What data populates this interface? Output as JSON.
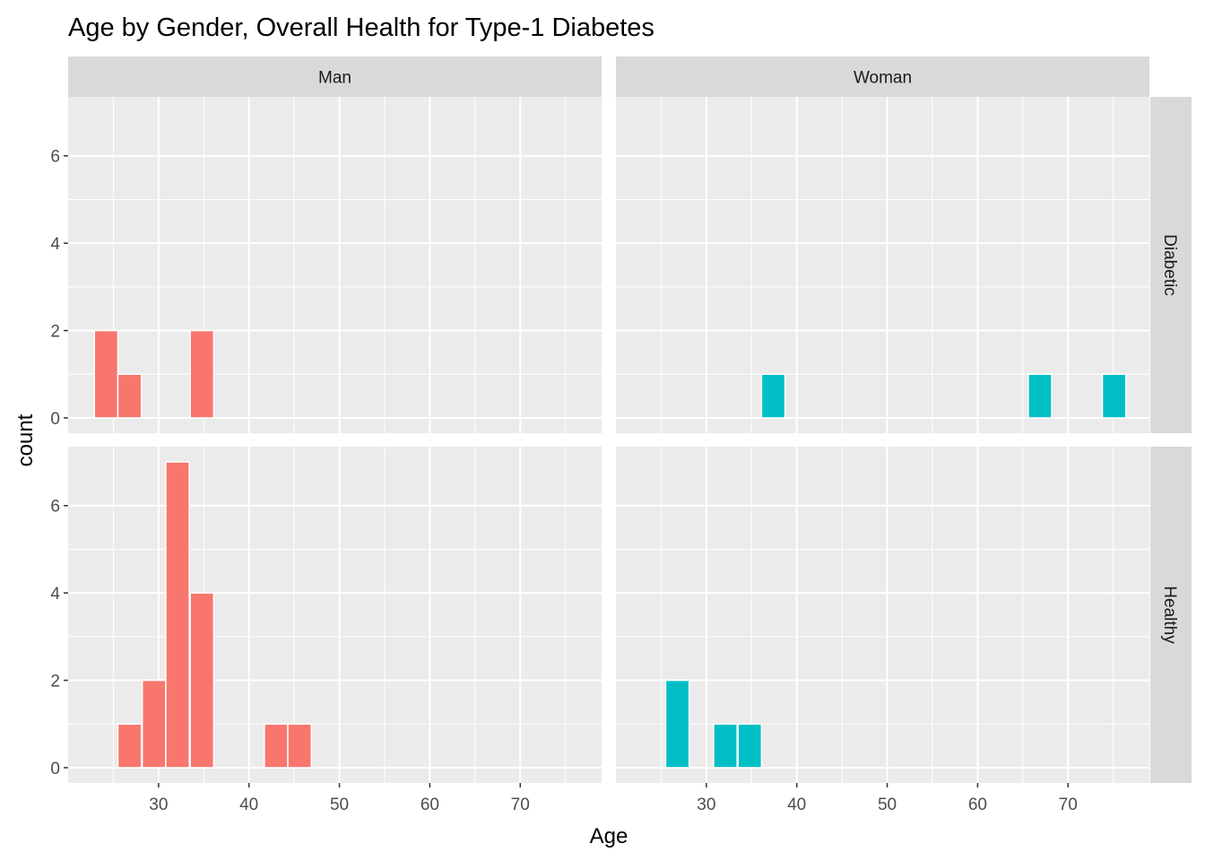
{
  "chart_data": {
    "type": "bar",
    "subtype": "faceted-histogram",
    "title": "Age by Gender, Overall Health for Type-1 Diabetes",
    "xlabel": "Age",
    "ylabel": "count",
    "xlim": [
      20,
      79
    ],
    "ylim": [
      -0.35,
      7.35
    ],
    "x_ticks": [
      30,
      40,
      50,
      60,
      70
    ],
    "y_ticks": [
      0,
      2,
      4,
      6
    ],
    "bin_width": 2.6,
    "grid": true,
    "legend": "none",
    "column_facets": [
      "Man",
      "Woman"
    ],
    "row_facets": [
      "Diabetic",
      "Healthy"
    ],
    "colors": {
      "Man": "#f8766d",
      "Woman": "#00bfc4"
    },
    "panels": [
      {
        "gender": "Man",
        "health": "Diabetic",
        "bins": [
          {
            "x": 24.2,
            "count": 2
          },
          {
            "x": 26.8,
            "count": 1
          },
          {
            "x": 34.8,
            "count": 2
          }
        ]
      },
      {
        "gender": "Woman",
        "health": "Diabetic",
        "bins": [
          {
            "x": 37.4,
            "count": 1
          },
          {
            "x": 66.9,
            "count": 1
          },
          {
            "x": 75.1,
            "count": 1
          }
        ]
      },
      {
        "gender": "Man",
        "health": "Healthy",
        "bins": [
          {
            "x": 26.8,
            "count": 1
          },
          {
            "x": 29.5,
            "count": 2
          },
          {
            "x": 32.1,
            "count": 7
          },
          {
            "x": 34.8,
            "count": 4
          },
          {
            "x": 43.0,
            "count": 1
          },
          {
            "x": 45.6,
            "count": 1
          }
        ]
      },
      {
        "gender": "Woman",
        "health": "Healthy",
        "bins": [
          {
            "x": 26.8,
            "count": 2
          },
          {
            "x": 32.1,
            "count": 1
          },
          {
            "x": 34.8,
            "count": 1
          }
        ]
      }
    ]
  }
}
